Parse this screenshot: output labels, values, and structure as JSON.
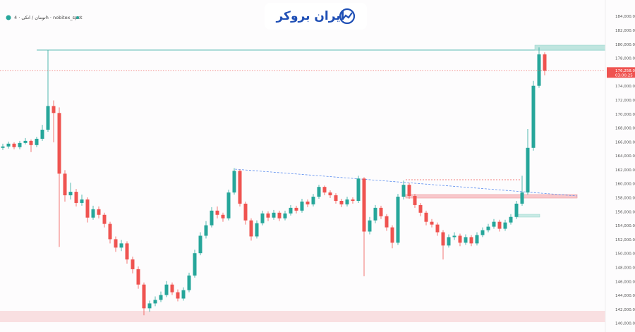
{
  "header": {
    "symbol": "تومان / اتکی · 4h · nobitex_spot",
    "watermark": "ایران بروکر"
  },
  "chart_data": {
    "type": "candlestick",
    "up_color": "#26a69a",
    "down_color": "#ef5350",
    "grid": false,
    "ylim": [
      138800,
      186400
    ],
    "yticks": [
      {
        "value": 140000,
        "label": "140,000.00"
      },
      {
        "value": 142000,
        "label": "142,000.00"
      },
      {
        "value": 144000,
        "label": "144,000.00"
      },
      {
        "value": 146000,
        "label": "146,000.00"
      },
      {
        "value": 148000,
        "label": "148,000.00"
      },
      {
        "value": 150000,
        "label": "150,000.00"
      },
      {
        "value": 152000,
        "label": "152,000.00"
      },
      {
        "value": 154000,
        "label": "154,000.00"
      },
      {
        "value": 156000,
        "label": "156,000.00"
      },
      {
        "value": 158000,
        "label": "158,000.00"
      },
      {
        "value": 160000,
        "label": "160,000.00"
      },
      {
        "value": 162000,
        "label": "162,000.00"
      },
      {
        "value": 164000,
        "label": "164,000.00"
      },
      {
        "value": 166000,
        "label": "166,000.00"
      },
      {
        "value": 168000,
        "label": "168,000.00"
      },
      {
        "value": 170000,
        "label": "170,000.00"
      },
      {
        "value": 172000,
        "label": "172,000.00"
      },
      {
        "value": 174000,
        "label": "174,000.00"
      },
      {
        "value": 176000,
        "label": "176,000.00"
      },
      {
        "value": 178000,
        "label": "178,000.00"
      },
      {
        "value": 180000,
        "label": "180,000.00"
      },
      {
        "value": 182000,
        "label": "182,000.00"
      },
      {
        "value": 184000,
        "label": "184,000.00"
      }
    ],
    "last_price": {
      "value": 176258,
      "label": "176,258.00"
    },
    "countdown": "03:00:25",
    "open": [
      165200,
      165400,
      165800,
      165300,
      165900,
      166200,
      165600,
      166500,
      167800,
      171200,
      170200,
      161500,
      158400,
      158900,
      157300,
      157800,
      155200,
      156400,
      155600,
      154300,
      152100,
      150900,
      151500,
      149200,
      147800,
      145600,
      142200,
      142900,
      143400,
      144100,
      145600,
      144500,
      143600,
      144800,
      146900,
      150100,
      152600,
      154100,
      156200,
      155600,
      155100,
      158800,
      161900,
      157200,
      154800,
      152500,
      154400,
      155800,
      155200,
      155900,
      155100,
      155800,
      156600,
      156200,
      157500,
      157100,
      158200,
      159600,
      158800,
      158400,
      157600,
      157100,
      157800,
      157600,
      160800,
      153200,
      154800,
      156600,
      155400,
      153800,
      151600,
      158200,
      159900,
      158300,
      157000,
      155900,
      154600,
      154200,
      153100,
      151200,
      152400,
      152600,
      151600,
      152400,
      151500,
      152700,
      153400,
      153900,
      154600,
      153600,
      154500,
      155300,
      157200,
      158800,
      165200,
      174100,
      178600
    ],
    "high": [
      165800,
      166100,
      166000,
      166200,
      166600,
      166400,
      166800,
      168500,
      179200,
      172000,
      171000,
      162000,
      160200,
      159300,
      158500,
      158100,
      156900,
      156800,
      155900,
      154600,
      152500,
      152000,
      151800,
      149600,
      148200,
      145900,
      143300,
      143900,
      144600,
      146100,
      145900,
      144900,
      145200,
      147300,
      150600,
      153100,
      154700,
      156700,
      156800,
      155900,
      159200,
      162300,
      162100,
      157500,
      155100,
      154800,
      156200,
      156100,
      156300,
      156200,
      156200,
      157000,
      156900,
      157900,
      157800,
      158600,
      159900,
      159800,
      159100,
      158700,
      157900,
      158200,
      158100,
      161200,
      161000,
      155300,
      157000,
      156900,
      155700,
      154100,
      158600,
      160500,
      160200,
      158600,
      157300,
      156200,
      155000,
      154500,
      153400,
      152800,
      153100,
      152900,
      152800,
      152700,
      153100,
      153800,
      154300,
      155000,
      154900,
      154900,
      155700,
      157600,
      161200,
      167900,
      174800,
      179600,
      178900
    ],
    "low": [
      164900,
      165100,
      165000,
      165000,
      165700,
      164600,
      165300,
      166200,
      167500,
      166000,
      151000,
      157500,
      157800,
      156800,
      156900,
      154500,
      154900,
      155100,
      153800,
      151500,
      150300,
      150400,
      148600,
      147200,
      145000,
      141200,
      141700,
      142500,
      143100,
      143800,
      144100,
      143200,
      143300,
      144500,
      146600,
      149800,
      152200,
      153800,
      155100,
      154600,
      154800,
      158500,
      156800,
      154200,
      151900,
      152200,
      154100,
      154700,
      154900,
      154700,
      154800,
      155500,
      155800,
      155900,
      156700,
      156800,
      157900,
      158400,
      158000,
      157200,
      156700,
      156800,
      157200,
      157300,
      146800,
      152800,
      154400,
      155000,
      153300,
      150800,
      151300,
      157800,
      157900,
      156600,
      155400,
      154100,
      153800,
      152600,
      149200,
      150900,
      152000,
      151100,
      151300,
      151100,
      151200,
      152400,
      153100,
      153600,
      153200,
      153300,
      154200,
      155000,
      156900,
      158500,
      164800,
      173800,
      175600
    ],
    "close": [
      165400,
      165800,
      165300,
      165900,
      166200,
      165600,
      166500,
      167800,
      171200,
      170200,
      161500,
      158400,
      158900,
      157300,
      157800,
      155200,
      156400,
      155600,
      154300,
      152100,
      150900,
      151500,
      149200,
      147800,
      145600,
      142200,
      142900,
      143400,
      144100,
      145600,
      144500,
      143600,
      144800,
      146900,
      150100,
      152600,
      154100,
      156200,
      155600,
      155100,
      158800,
      161900,
      157200,
      154800,
      152500,
      154400,
      155800,
      155200,
      155900,
      155100,
      155800,
      156600,
      156200,
      157500,
      157100,
      158200,
      159600,
      158800,
      158400,
      157600,
      157100,
      157800,
      157600,
      160800,
      153200,
      154800,
      156600,
      155400,
      153800,
      151600,
      158200,
      159900,
      158300,
      157000,
      155900,
      154600,
      154200,
      153100,
      151200,
      152400,
      152600,
      151600,
      152400,
      151500,
      152700,
      153400,
      153900,
      154600,
      153600,
      154500,
      155300,
      157200,
      158800,
      165200,
      174100,
      178600,
      176258
    ]
  }
}
